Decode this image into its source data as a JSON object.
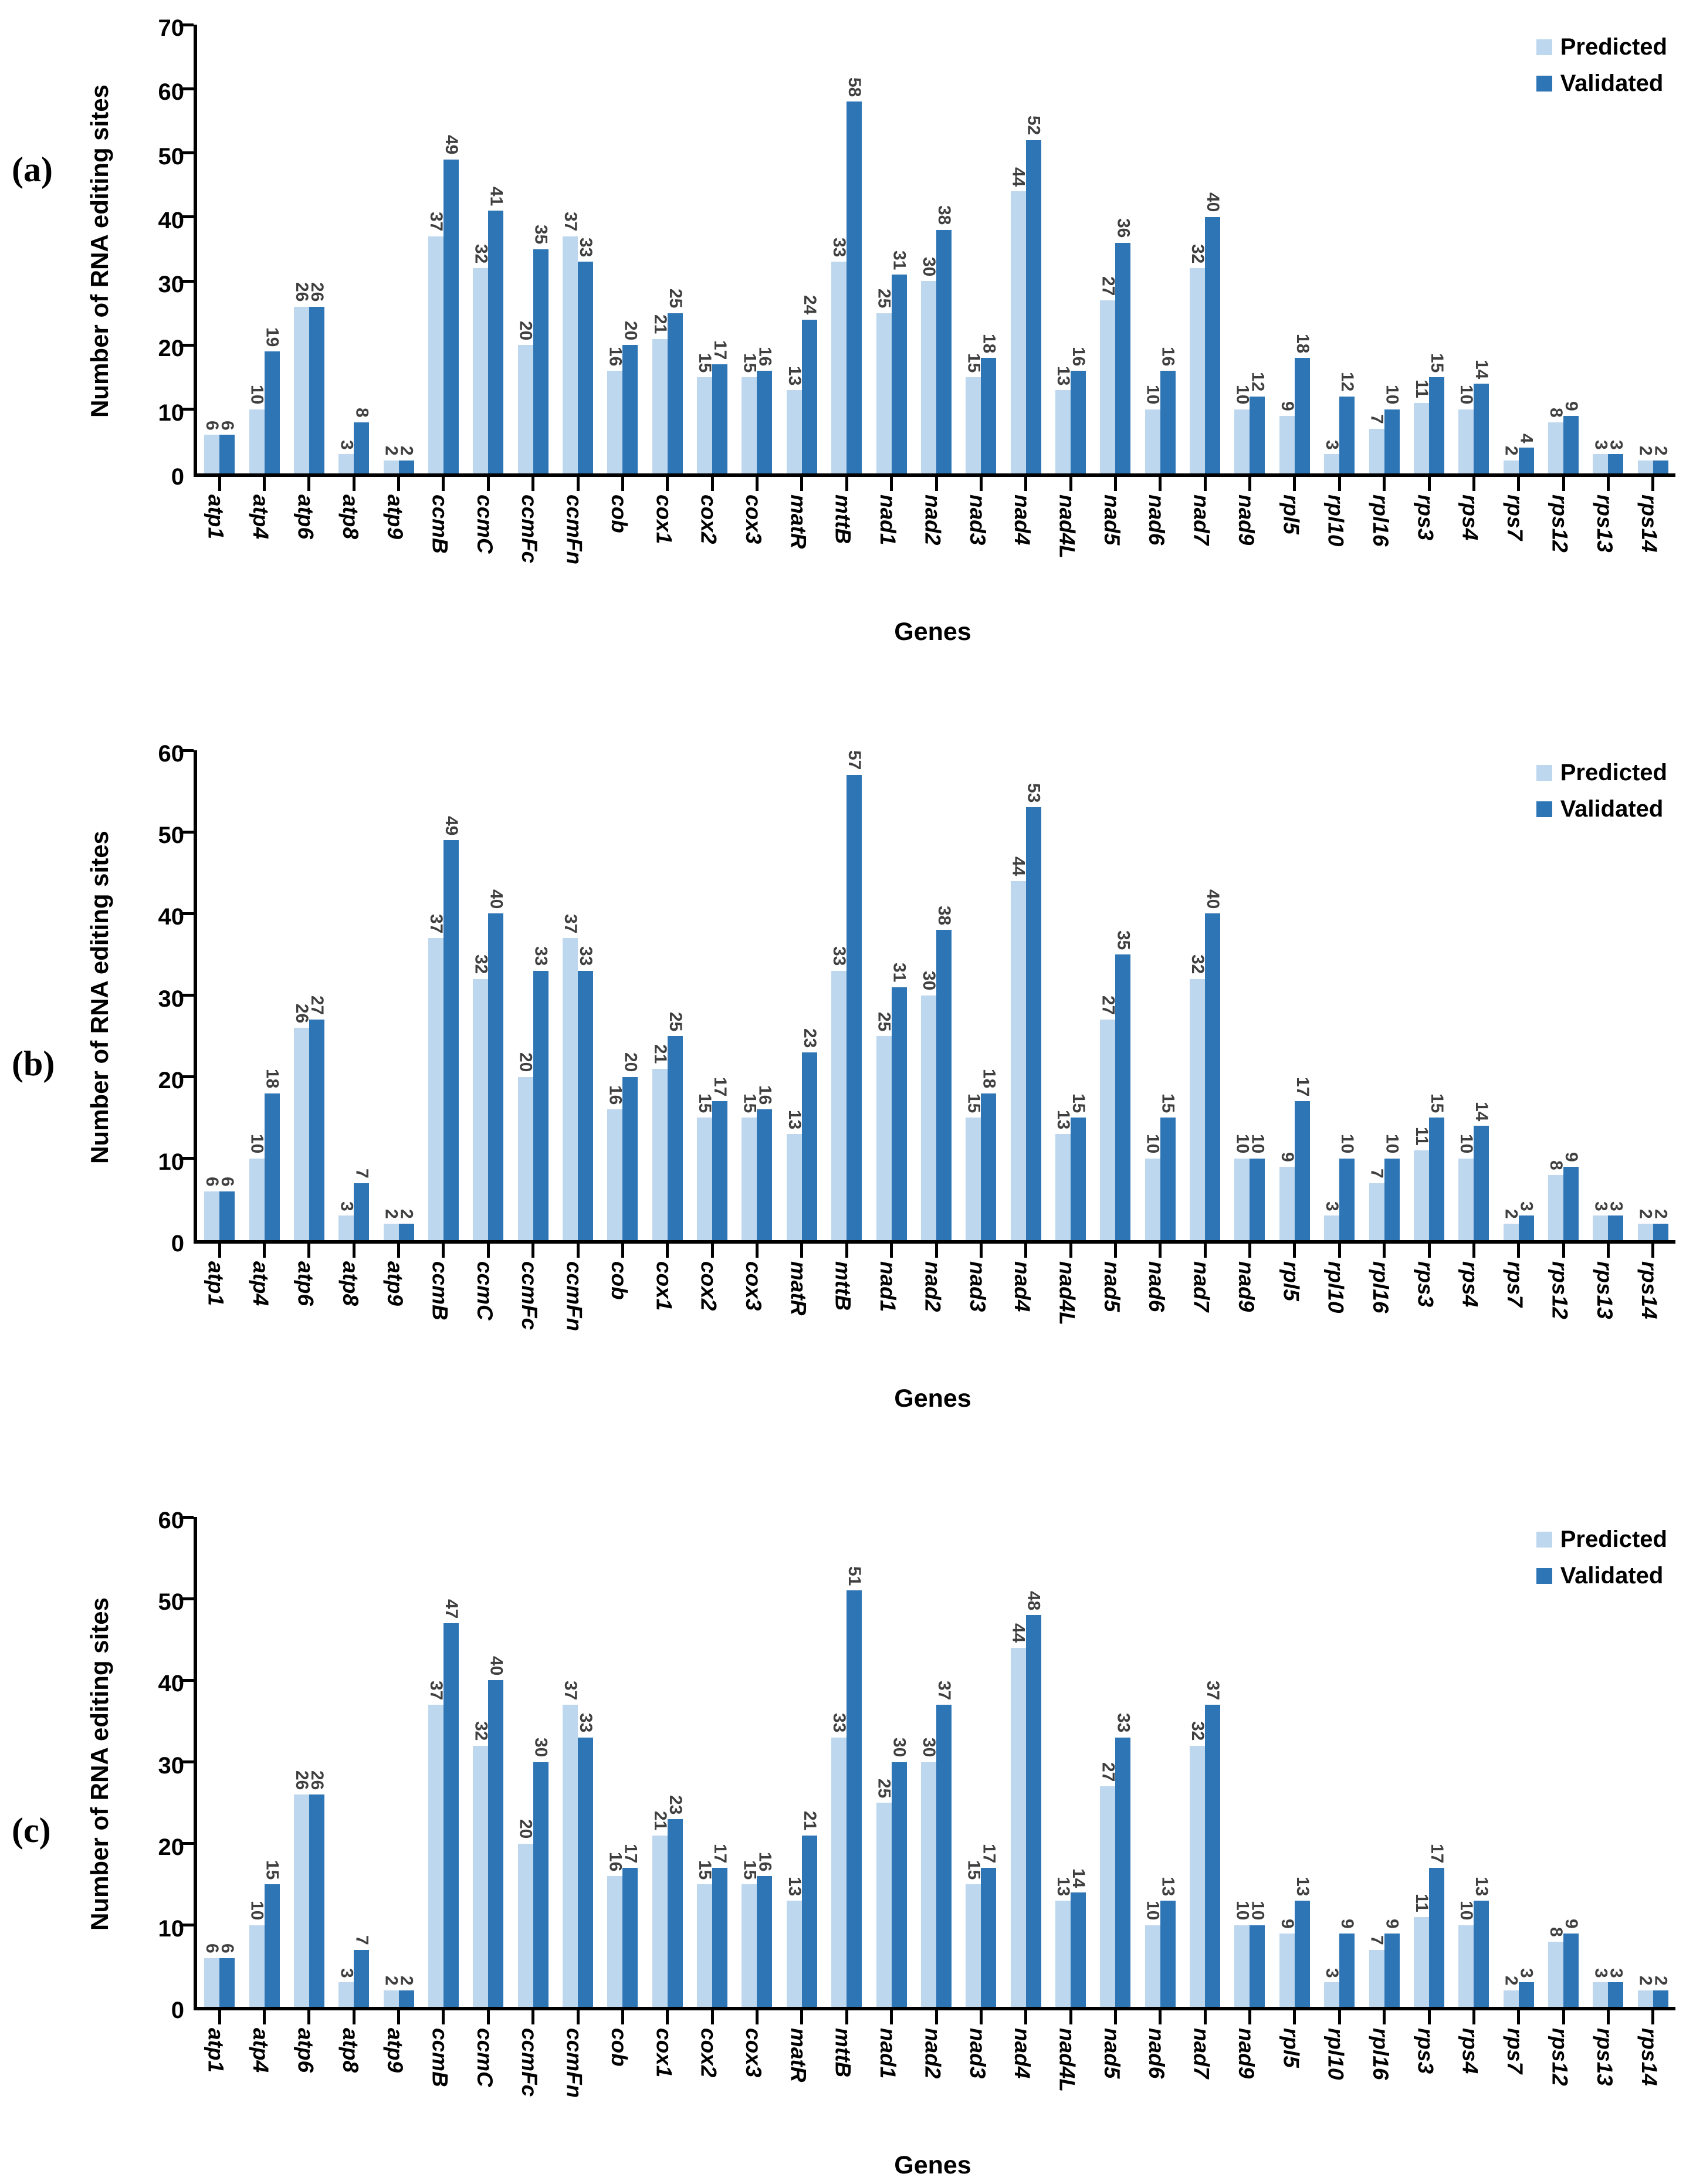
{
  "figure": {
    "y_axis_title": "Number of RNA editing sites",
    "x_axis_title": "Genes",
    "legend": {
      "predicted": "Predicted",
      "validated": "Validated"
    },
    "colors": {
      "predicted": "#BDD7EE",
      "validated": "#2E75B6",
      "axis": "#000000",
      "value_label": "#3F3F3F"
    }
  },
  "chart_data": [
    {
      "type": "bar",
      "panel": "(a)",
      "xlabel": "Genes",
      "ylabel": "Number of RNA editing sites",
      "ylim": [
        0,
        70
      ],
      "ytick_step": 10,
      "grid": false,
      "legend_position": "top-right",
      "categories": [
        "atp1",
        "atp4",
        "atp6",
        "atp8",
        "atp9",
        "ccmB",
        "ccmC",
        "ccmFc",
        "ccmFn",
        "cob",
        "cox1",
        "cox2",
        "cox3",
        "matR",
        "mttB",
        "nad1",
        "nad2",
        "nad3",
        "nad4",
        "nad4L",
        "nad5",
        "nad6",
        "nad7",
        "nad9",
        "rpl5",
        "rpl10",
        "rpl16",
        "rps3",
        "rps4",
        "rps7",
        "rps12",
        "rps13",
        "rps14"
      ],
      "series": [
        {
          "name": "Predicted",
          "values": [
            6,
            10,
            26,
            3,
            2,
            37,
            32,
            20,
            37,
            16,
            21,
            15,
            15,
            13,
            33,
            25,
            30,
            15,
            44,
            13,
            27,
            10,
            32,
            10,
            9,
            3,
            7,
            11,
            10,
            2,
            8,
            3,
            2
          ]
        },
        {
          "name": "Validated",
          "values": [
            6,
            19,
            26,
            8,
            2,
            49,
            41,
            35,
            33,
            20,
            25,
            17,
            16,
            24,
            58,
            31,
            38,
            18,
            52,
            16,
            36,
            16,
            40,
            12,
            18,
            12,
            10,
            15,
            14,
            4,
            9,
            3,
            2
          ]
        }
      ]
    },
    {
      "type": "bar",
      "panel": "(b)",
      "xlabel": "Genes",
      "ylabel": "Number of RNA editing sites",
      "ylim": [
        0,
        60
      ],
      "ytick_step": 10,
      "grid": false,
      "legend_position": "top-right",
      "categories": [
        "atp1",
        "atp4",
        "atp6",
        "atp8",
        "atp9",
        "ccmB",
        "ccmC",
        "ccmFc",
        "ccmFn",
        "cob",
        "cox1",
        "cox2",
        "cox3",
        "matR",
        "mttB",
        "nad1",
        "nad2",
        "nad3",
        "nad4",
        "nad4L",
        "nad5",
        "nad6",
        "nad7",
        "nad9",
        "rpl5",
        "rpl10",
        "rpl16",
        "rps3",
        "rps4",
        "rps7",
        "rps12",
        "rps13",
        "rps14"
      ],
      "series": [
        {
          "name": "Predicted",
          "values": [
            6,
            10,
            26,
            3,
            2,
            37,
            32,
            20,
            37,
            16,
            21,
            15,
            15,
            13,
            33,
            25,
            30,
            15,
            44,
            13,
            27,
            10,
            32,
            10,
            9,
            3,
            7,
            11,
            10,
            2,
            8,
            3,
            2
          ]
        },
        {
          "name": "Validated",
          "values": [
            6,
            18,
            27,
            7,
            2,
            49,
            40,
            33,
            33,
            20,
            25,
            17,
            16,
            23,
            57,
            31,
            38,
            18,
            53,
            15,
            35,
            15,
            40,
            10,
            17,
            10,
            10,
            15,
            14,
            3,
            9,
            3,
            2
          ]
        }
      ]
    },
    {
      "type": "bar",
      "panel": "(c)",
      "xlabel": "Genes",
      "ylabel": "Number of RNA editing sites",
      "ylim": [
        0,
        60
      ],
      "ytick_step": 10,
      "grid": false,
      "legend_position": "top-right",
      "categories": [
        "atp1",
        "atp4",
        "atp6",
        "atp8",
        "atp9",
        "ccmB",
        "ccmC",
        "ccmFc",
        "ccmFn",
        "cob",
        "cox1",
        "cox2",
        "cox3",
        "matR",
        "mttB",
        "nad1",
        "nad2",
        "nad3",
        "nad4",
        "nad4L",
        "nad5",
        "nad6",
        "nad7",
        "nad9",
        "rpl5",
        "rpl10",
        "rpl16",
        "rps3",
        "rps4",
        "rps7",
        "rps12",
        "rps13",
        "rps14"
      ],
      "series": [
        {
          "name": "Predicted",
          "values": [
            6,
            10,
            26,
            3,
            2,
            37,
            32,
            20,
            37,
            16,
            21,
            15,
            15,
            13,
            33,
            25,
            30,
            15,
            44,
            13,
            27,
            10,
            32,
            10,
            9,
            3,
            7,
            11,
            10,
            2,
            8,
            3,
            2
          ]
        },
        {
          "name": "Validated",
          "values": [
            6,
            15,
            26,
            7,
            2,
            47,
            40,
            30,
            33,
            17,
            23,
            17,
            16,
            21,
            51,
            30,
            37,
            17,
            48,
            14,
            33,
            13,
            37,
            10,
            13,
            9,
            9,
            17,
            13,
            3,
            9,
            3,
            2
          ]
        }
      ]
    }
  ]
}
